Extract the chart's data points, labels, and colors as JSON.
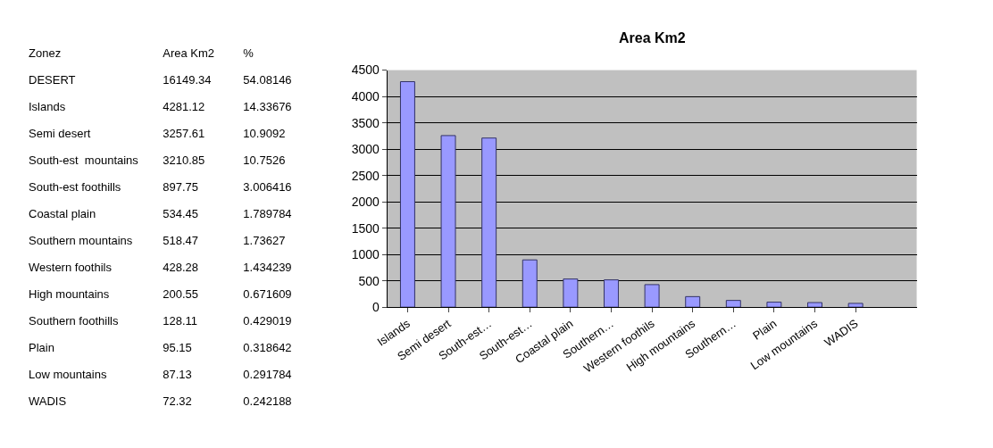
{
  "chart_data": [
    {
      "type": "other",
      "xlabel": "Zonez",
      "categories": [
        "DESERT",
        "Islands",
        "Semi desert",
        "South-est  mountains",
        "South-est foothills",
        "Coastal plain",
        "Southern mountains",
        "Western foothils",
        "High mountains",
        "Southern foothills",
        "Plain",
        "Low mountains",
        "WADIS"
      ],
      "series": [
        {
          "name": "Area Km2",
          "values": [
            16149.34,
            4281.12,
            3257.61,
            3210.85,
            897.75,
            534.45,
            518.47,
            428.28,
            200.55,
            128.11,
            95.15,
            87.13,
            72.32
          ]
        },
        {
          "name": "%",
          "values": [
            54.08146,
            14.33676,
            10.9092,
            10.7526,
            3.006416,
            1.789784,
            1.73627,
            1.434239,
            0.671609,
            0.429019,
            0.318642,
            0.291784,
            0.242188
          ]
        }
      ],
      "data_labels": true
    },
    {
      "type": "bar",
      "title": "Area Km2",
      "categories": [
        "Islands",
        "Semi desert",
        "South-est…",
        "South-est…",
        "Coastal plain",
        "Southern…",
        "Western foothils",
        "High mountains",
        "Southern…",
        "Plain",
        "Low mountains",
        "WADIS"
      ],
      "values": [
        4281.12,
        3257.61,
        3210.85,
        897.75,
        534.45,
        518.47,
        428.28,
        200.55,
        128.11,
        95.15,
        87.13,
        72.32
      ],
      "color": "#9999ff",
      "ylim": [
        0,
        4500
      ],
      "yticks": [
        0,
        500,
        1000,
        1500,
        2000,
        2500,
        3000,
        3500,
        4000,
        4500
      ],
      "grid": "y"
    }
  ]
}
